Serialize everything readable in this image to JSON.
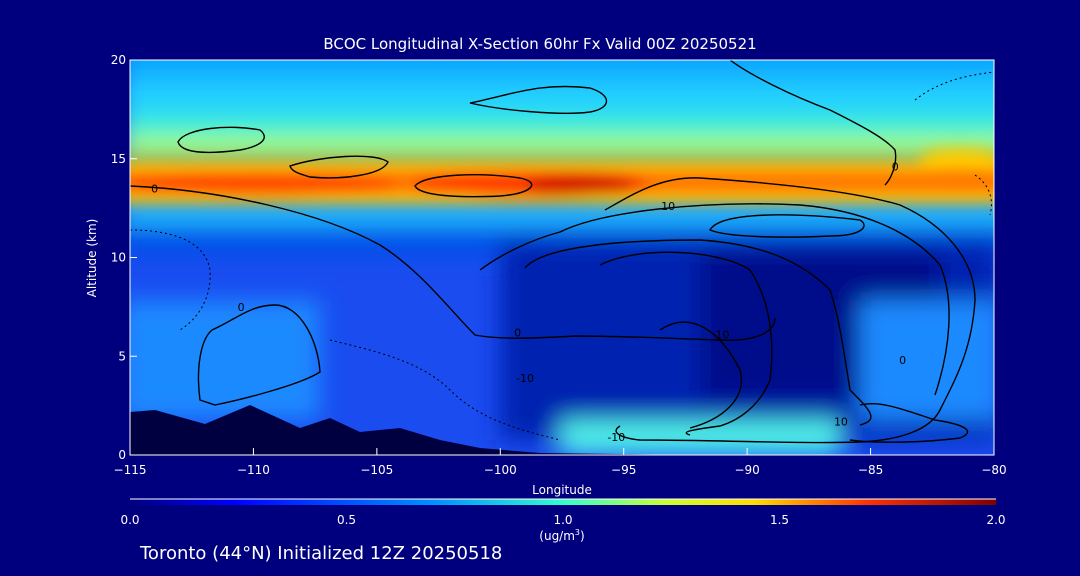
{
  "chart_data": {
    "type": "heatmap",
    "title": "BCOC Longitudinal X-Section 60hr  Fx Valid 00Z 20250521",
    "xlabel": "Longitude",
    "ylabel": "Altitude (km)",
    "xlim": [
      -115,
      -80
    ],
    "ylim": [
      0,
      20
    ],
    "x_ticks": [
      -115,
      -110,
      -105,
      -100,
      -95,
      -90,
      -85,
      -80
    ],
    "y_ticks": [
      0,
      5,
      10,
      15,
      20
    ],
    "colorbar": {
      "label_line1": "(ug/m",
      "label_sup": "3",
      "label_close": ")",
      "range": [
        0.0,
        2.0
      ],
      "ticks": [
        "0.0",
        "0.5",
        "1.0",
        "1.5",
        "2.0"
      ]
    },
    "contour_labels": [
      {
        "text": "0",
        "x": -114,
        "y": 13.5
      },
      {
        "text": "0",
        "x": -110.5,
        "y": 7.5
      },
      {
        "text": "0",
        "x": -99.3,
        "y": 6.2
      },
      {
        "text": "-10",
        "x": -99,
        "y": 3.9
      },
      {
        "text": "-10",
        "x": -95.3,
        "y": 0.9
      },
      {
        "text": "10",
        "x": -93.2,
        "y": 12.6
      },
      {
        "text": "10",
        "x": -91,
        "y": 6.1
      },
      {
        "text": "10",
        "x": -86.2,
        "y": 1.7
      },
      {
        "text": "0",
        "x": -84,
        "y": 14.6
      },
      {
        "text": "0",
        "x": -83.7,
        "y": 4.8
      }
    ],
    "colors": {
      "background": "#00007f",
      "terrain": "#000040",
      "contour": "#000000",
      "frame": "#ffffff"
    }
  },
  "footer": "Toronto (44°N) Initialized 12Z 20250518"
}
